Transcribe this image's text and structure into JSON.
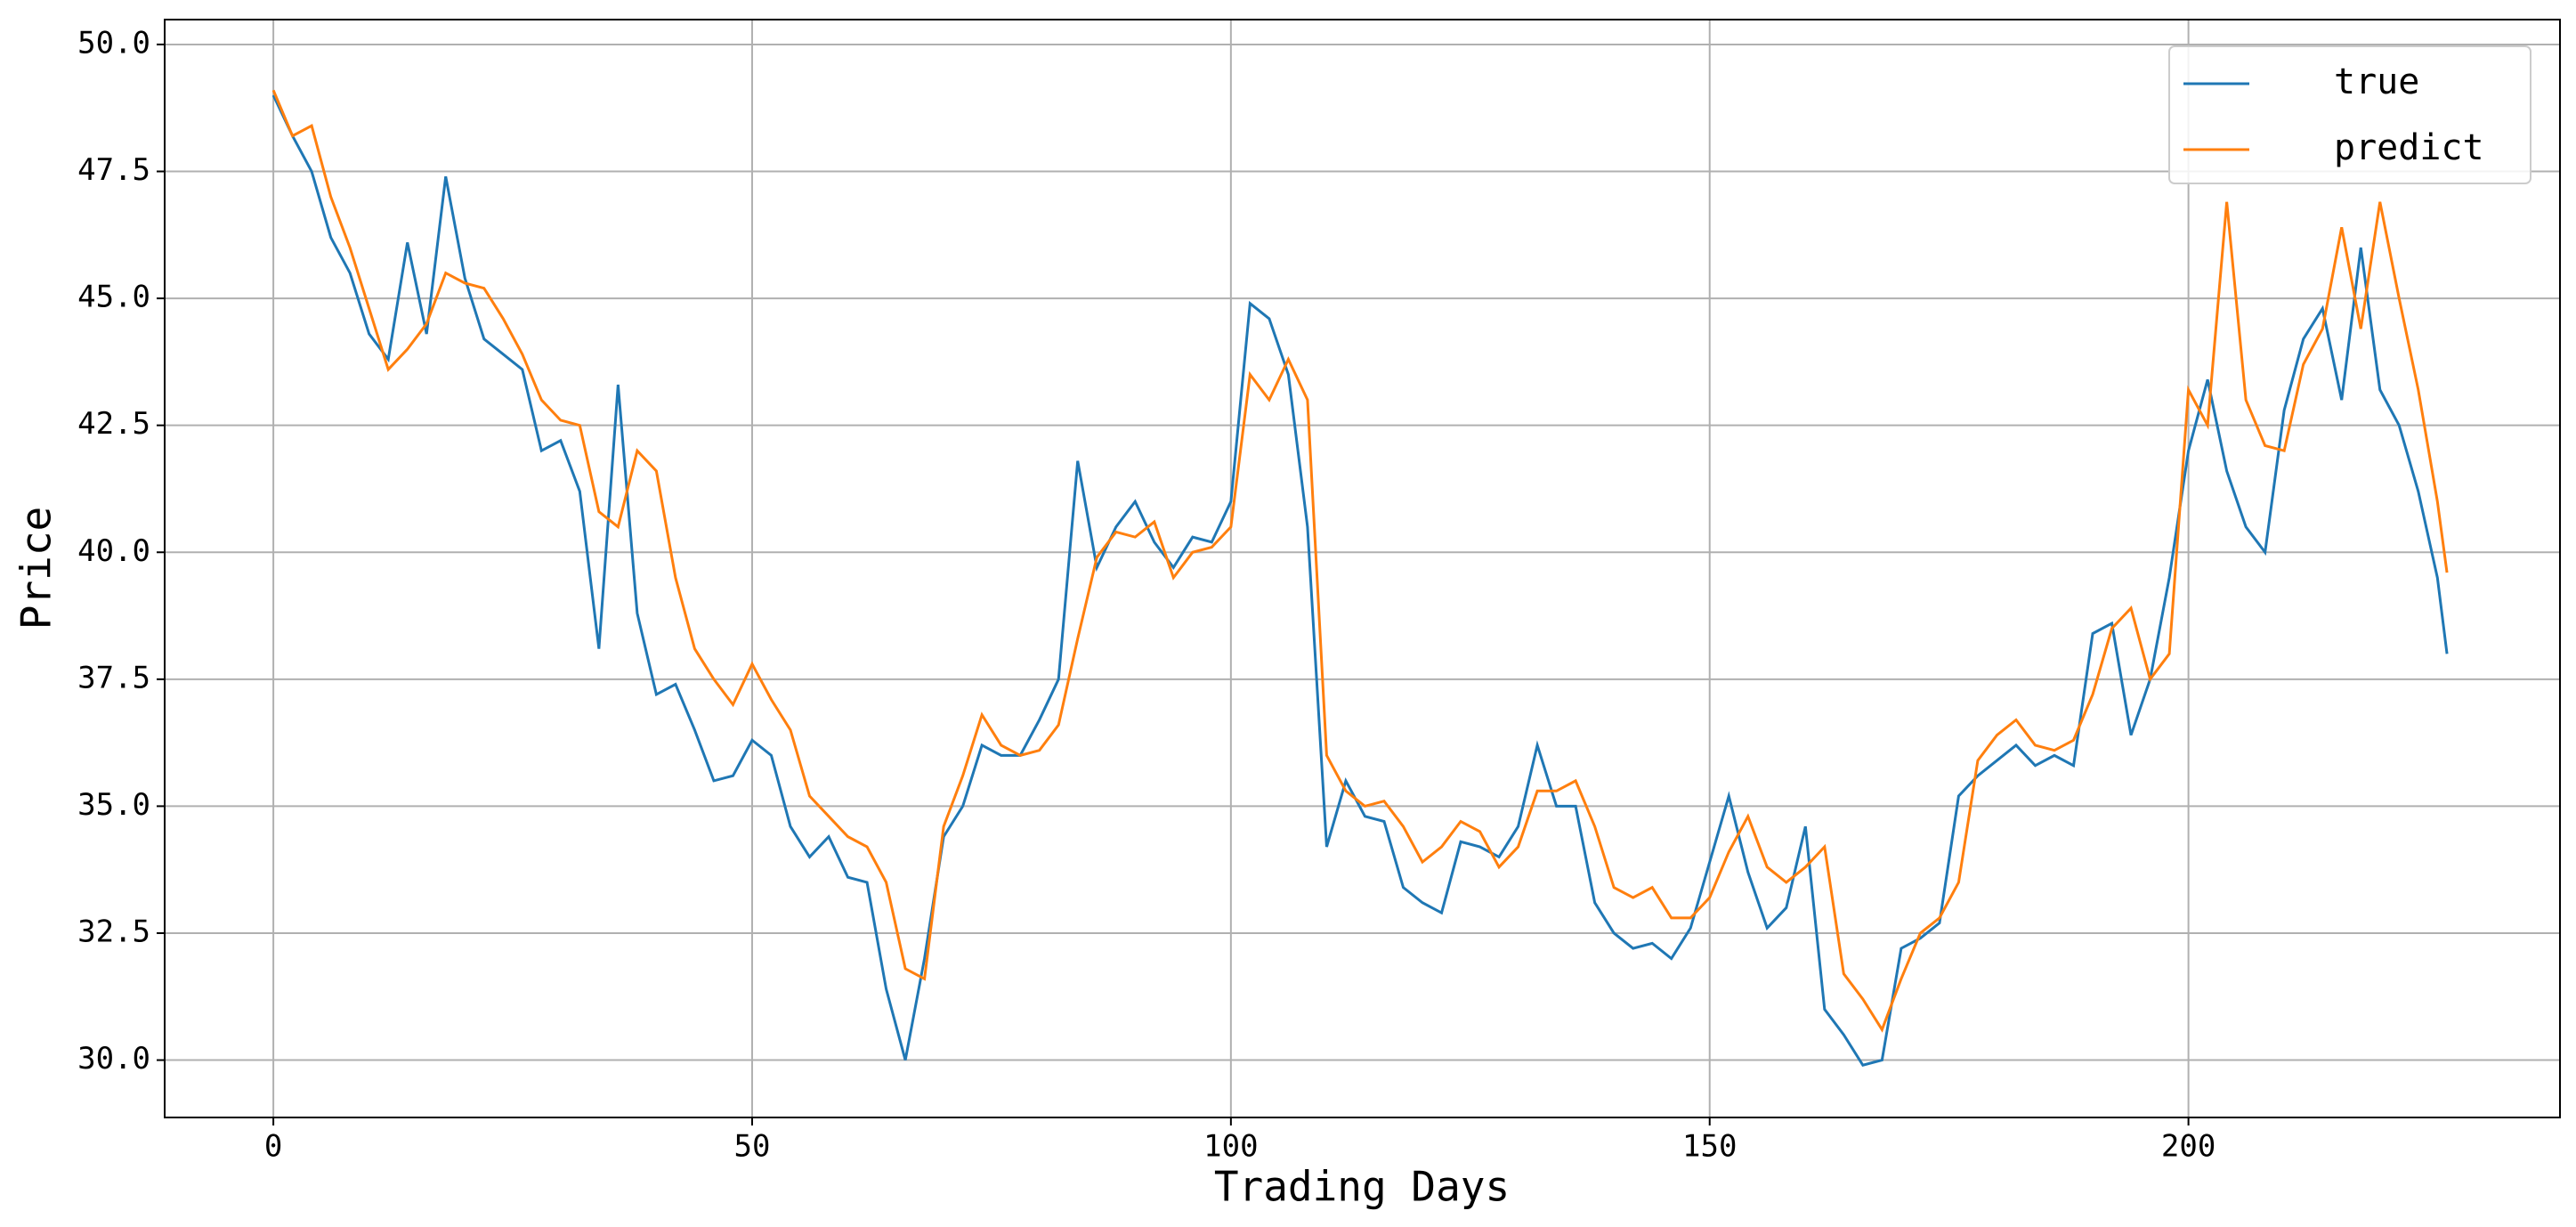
{
  "chart_data": {
    "type": "line",
    "x_label": "Trading Days",
    "y_label": "Price",
    "xlim": [
      -11.35,
      238.8
    ],
    "ylim": [
      28.87,
      50.49
    ],
    "xticks": [
      0,
      50,
      100,
      150,
      200
    ],
    "yticks": [
      {
        "value": 30,
        "label": "30.0"
      },
      {
        "value": 32.5,
        "label": "32.5"
      },
      {
        "value": 35,
        "label": "35.0"
      },
      {
        "value": 37.5,
        "label": "37.5"
      },
      {
        "value": 40,
        "label": "40.0"
      },
      {
        "value": 42.5,
        "label": "42.5"
      },
      {
        "value": 45,
        "label": "45.0"
      },
      {
        "value": 47.5,
        "label": "47.5"
      },
      {
        "value": 50,
        "label": "50.0"
      }
    ],
    "grid": true,
    "legend": "upper right",
    "x": [
      0,
      2,
      4,
      6,
      8,
      10,
      12,
      14,
      16,
      18,
      20,
      22,
      24,
      26,
      28,
      30,
      32,
      34,
      36,
      38,
      40,
      42,
      44,
      46,
      48,
      50,
      52,
      54,
      56,
      58,
      60,
      62,
      64,
      66,
      68,
      70,
      72,
      74,
      76,
      78,
      80,
      82,
      84,
      86,
      88,
      90,
      92,
      94,
      96,
      98,
      100,
      102,
      104,
      106,
      108,
      110,
      112,
      114,
      116,
      118,
      120,
      122,
      124,
      126,
      128,
      130,
      132,
      134,
      136,
      138,
      140,
      142,
      144,
      146,
      148,
      150,
      152,
      154,
      156,
      158,
      160,
      162,
      164,
      166,
      168,
      170,
      172,
      174,
      176,
      178,
      180,
      182,
      184,
      186,
      188,
      190,
      192,
      194,
      196,
      198,
      200,
      202,
      204,
      206,
      208,
      210,
      212,
      214,
      216,
      218,
      220,
      222,
      224,
      226,
      227
    ],
    "series": [
      {
        "name": "true",
        "color": "#1f77b4",
        "values": [
          49.0,
          48.2,
          47.5,
          46.2,
          45.5,
          44.3,
          43.8,
          46.1,
          44.3,
          47.4,
          45.4,
          44.2,
          43.9,
          43.6,
          42.0,
          42.2,
          41.2,
          38.1,
          43.3,
          38.8,
          37.2,
          37.4,
          36.5,
          35.5,
          35.6,
          36.3,
          36.0,
          34.6,
          34.0,
          34.4,
          33.6,
          33.5,
          31.4,
          30.0,
          32.0,
          34.4,
          35.0,
          36.2,
          36.0,
          36.0,
          36.7,
          37.5,
          41.8,
          39.7,
          40.5,
          41.0,
          40.2,
          39.7,
          40.3,
          40.2,
          41.0,
          44.9,
          44.6,
          43.5,
          40.5,
          34.2,
          35.5,
          34.8,
          34.7,
          33.4,
          33.1,
          32.9,
          34.3,
          34.2,
          34.0,
          34.6,
          36.2,
          35.0,
          35.0,
          33.1,
          32.5,
          32.2,
          32.3,
          32.0,
          32.6,
          33.9,
          35.2,
          33.7,
          32.6,
          33.0,
          34.6,
          31.0,
          30.5,
          29.9,
          30.0,
          32.2,
          32.4,
          32.7,
          35.2,
          35.6,
          35.9,
          36.2,
          35.8,
          36.0,
          35.8,
          38.4,
          38.6,
          36.4,
          37.5,
          39.5,
          42.0,
          43.4,
          41.6,
          40.5,
          40.0,
          42.8,
          44.2,
          44.8,
          43.0,
          46.0,
          43.2,
          42.5,
          41.2,
          39.5,
          38.0
        ]
      },
      {
        "name": "predict",
        "color": "#ff7f0e",
        "values": [
          49.1,
          48.2,
          48.4,
          47.0,
          46.0,
          44.8,
          43.6,
          44.0,
          44.5,
          45.5,
          45.3,
          45.2,
          44.6,
          43.9,
          43.0,
          42.6,
          42.5,
          40.8,
          40.5,
          42.0,
          41.6,
          39.5,
          38.1,
          37.5,
          37.0,
          37.8,
          37.1,
          36.5,
          35.2,
          34.8,
          34.4,
          34.2,
          33.5,
          31.8,
          31.6,
          34.6,
          35.6,
          36.8,
          36.2,
          36.0,
          36.1,
          36.6,
          38.3,
          39.9,
          40.4,
          40.3,
          40.6,
          39.5,
          40.0,
          40.1,
          40.5,
          43.5,
          43.0,
          43.8,
          43.0,
          36.0,
          35.3,
          35.0,
          35.1,
          34.6,
          33.9,
          34.2,
          34.7,
          34.5,
          33.8,
          34.2,
          35.3,
          35.3,
          35.5,
          34.6,
          33.4,
          33.2,
          33.4,
          32.8,
          32.8,
          33.2,
          34.1,
          34.8,
          33.8,
          33.5,
          33.8,
          34.2,
          31.7,
          31.2,
          30.6,
          31.6,
          32.5,
          32.8,
          33.5,
          35.9,
          36.4,
          36.7,
          36.2,
          36.1,
          36.3,
          37.2,
          38.5,
          38.9,
          37.5,
          38.0,
          43.2,
          42.5,
          46.9,
          43.0,
          42.1,
          42.0,
          43.7,
          44.4,
          46.4,
          44.4,
          46.9,
          45.0,
          43.2,
          41.0,
          39.6
        ]
      }
    ]
  }
}
